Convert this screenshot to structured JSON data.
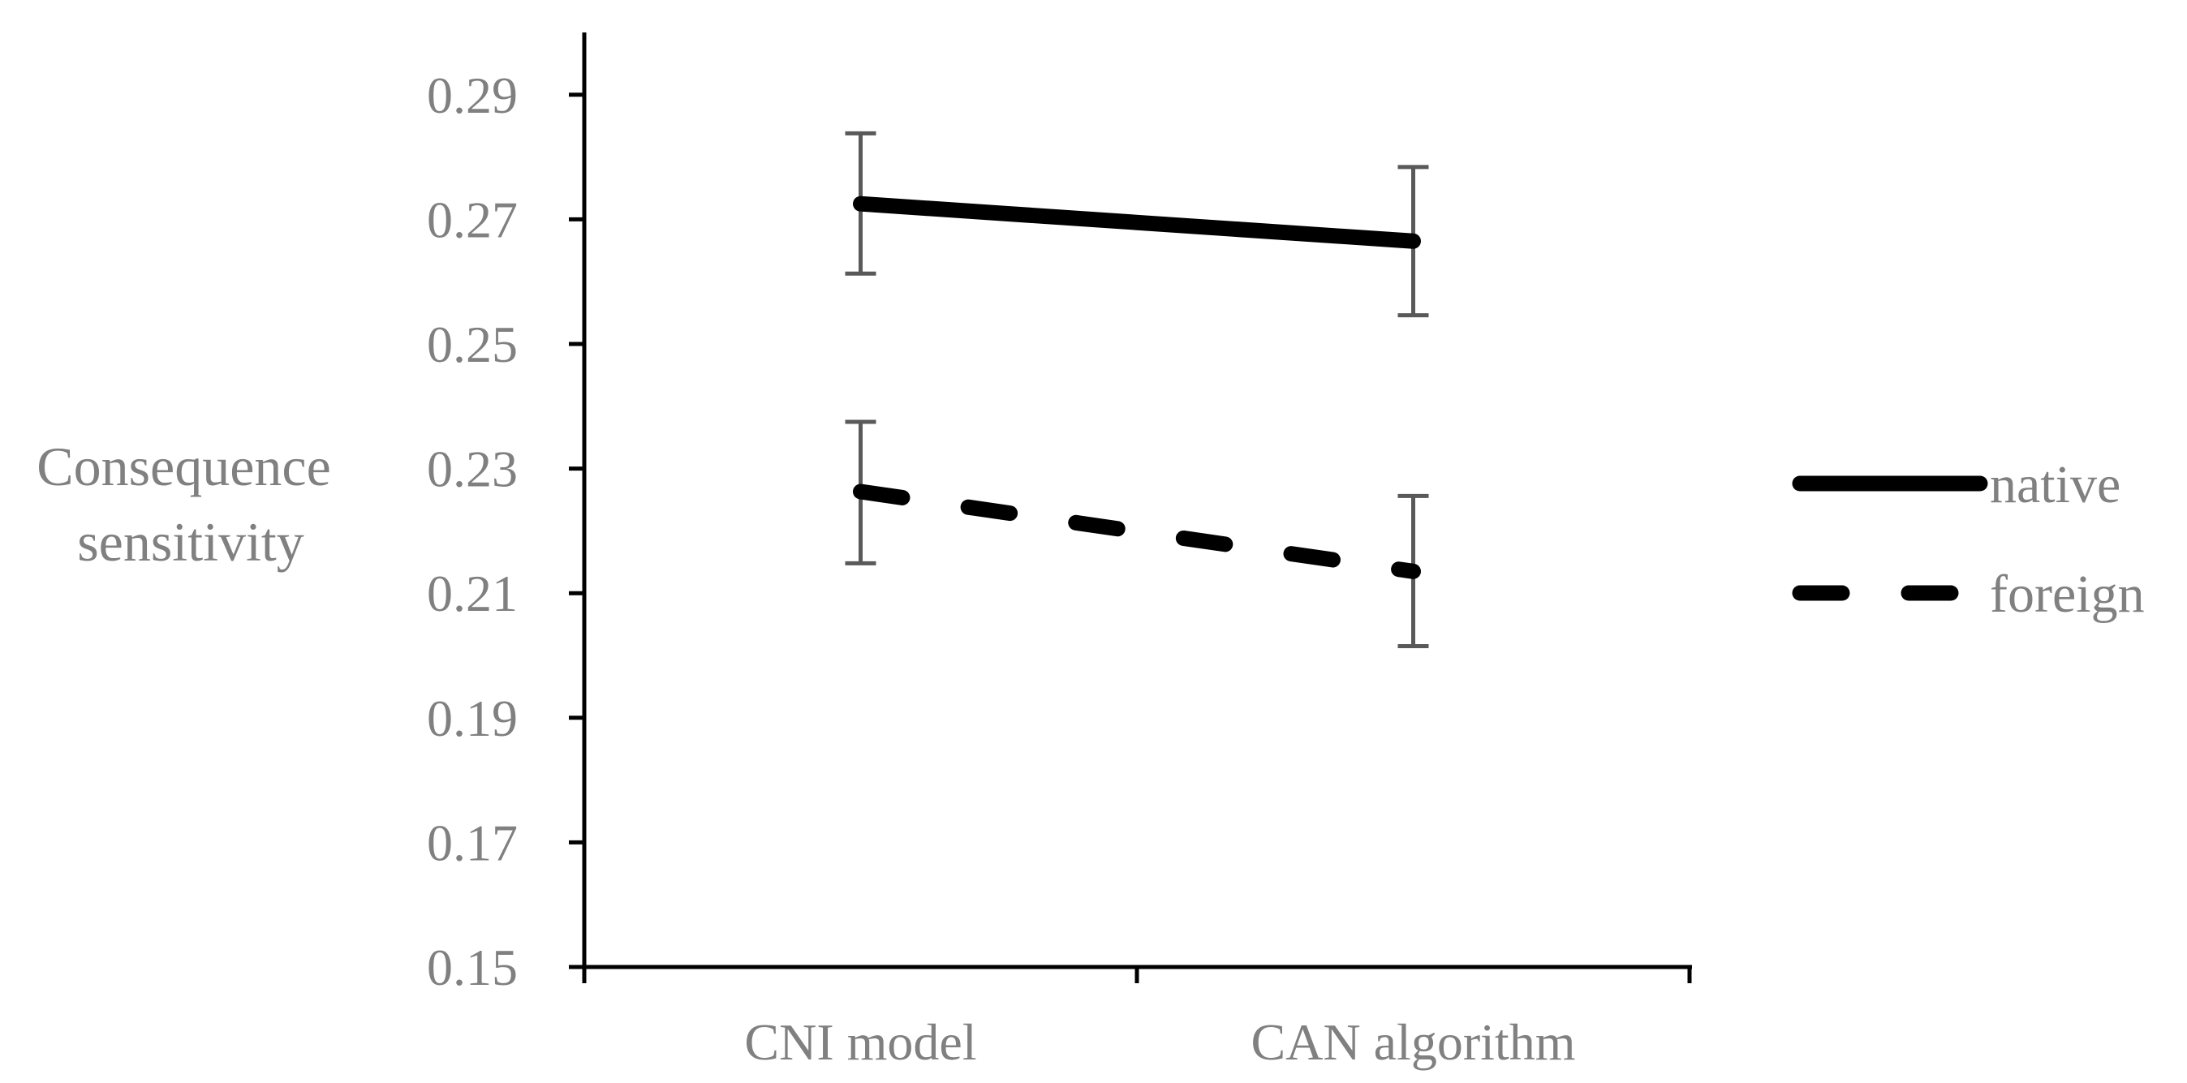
{
  "chart_data": {
    "type": "line",
    "title": "",
    "xlabel": "",
    "ylabel": [
      "Consequence",
      "sensitivity"
    ],
    "categories": [
      "CNI model",
      "CAN algorithm"
    ],
    "ylim": [
      0.15,
      0.3
    ],
    "yticks": [
      "0.15",
      "0.17",
      "0.19",
      "0.21",
      "0.23",
      "0.25",
      "0.27",
      "0.29"
    ],
    "grid": false,
    "legend_position": "right",
    "series": [
      {
        "name": "native",
        "style": "solid",
        "color": "#000000",
        "values": [
          0.2725,
          0.2665
        ],
        "error_low": [
          0.2613,
          0.2546
        ],
        "error_high": [
          0.2838,
          0.2784
        ]
      },
      {
        "name": "foreign",
        "style": "dashed",
        "color": "#000000",
        "values": [
          0.2263,
          0.2135
        ],
        "error_low": [
          0.2148,
          0.2015
        ],
        "error_high": [
          0.2375,
          0.2256
        ]
      }
    ],
    "colors": {
      "axis": "#000000",
      "text": "#808080",
      "errorbar": "#595959"
    }
  }
}
